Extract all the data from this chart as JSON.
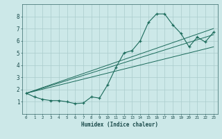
{
  "xlabel": "Humidex (Indice chaleur)",
  "bg_color": "#cce8e8",
  "grid_color": "#aacccc",
  "line_color": "#1a6a5a",
  "xlim": [
    -0.5,
    23.5
  ],
  "ylim": [
    0,
    9
  ],
  "xticks": [
    0,
    1,
    2,
    3,
    4,
    5,
    6,
    7,
    8,
    9,
    10,
    11,
    12,
    13,
    14,
    15,
    16,
    17,
    18,
    19,
    20,
    21,
    22,
    23
  ],
  "yticks": [
    1,
    2,
    3,
    4,
    5,
    6,
    7,
    8
  ],
  "line1_x": [
    0,
    1,
    2,
    3,
    4,
    5,
    6,
    7,
    8,
    9,
    10,
    11,
    12,
    13,
    14,
    15,
    16,
    17,
    18,
    19,
    20,
    21,
    22,
    23
  ],
  "line1_y": [
    1.7,
    1.4,
    1.2,
    1.1,
    1.1,
    1.0,
    0.85,
    0.9,
    1.4,
    1.3,
    2.4,
    3.8,
    5.0,
    5.2,
    6.0,
    7.5,
    8.2,
    8.2,
    7.3,
    6.6,
    5.5,
    6.3,
    5.9,
    6.7
  ],
  "line2_x": [
    0,
    23
  ],
  "line2_y": [
    1.7,
    5.5
  ],
  "line3_x": [
    0,
    23
  ],
  "line3_y": [
    1.7,
    6.5
  ],
  "line4_x": [
    0,
    23
  ],
  "line4_y": [
    1.7,
    7.0
  ]
}
